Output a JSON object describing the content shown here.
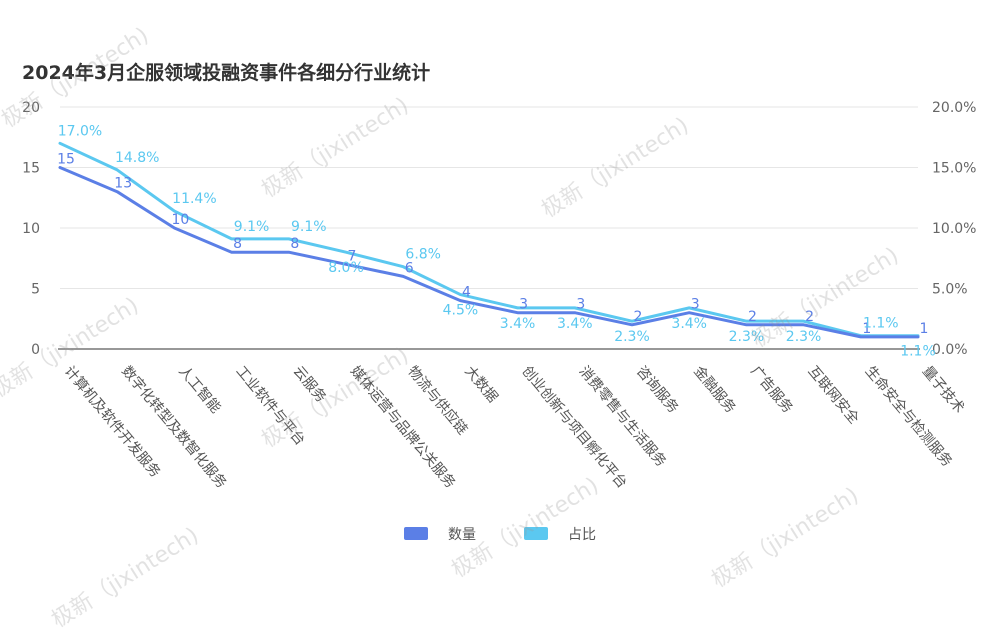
{
  "watermark_text": "极新（jixintech)",
  "chart_data": {
    "type": "line",
    "title": "2024年3月企服领域投融资事件各细分行业统计",
    "categories": [
      "计算机及软件开发服务",
      "数字化转型及数智化服务",
      "人工智能",
      "工业软件与平台",
      "云服务",
      "媒体运营与品牌公关服务",
      "物流与供应链",
      "大数据",
      "创业创新与项目孵化平台",
      "消费零售与生活服务",
      "咨询服务",
      "金融服务",
      "广告服务",
      "互联网安全",
      "生命安全与检测服务",
      "量子技术"
    ],
    "series": [
      {
        "name": "数量",
        "axis": "left",
        "color": "#5b7fe6",
        "values": [
          15,
          13,
          10,
          8,
          8,
          7,
          6,
          4,
          3,
          3,
          2,
          3,
          2,
          2,
          1,
          1
        ],
        "labels": [
          "15",
          "13",
          "10",
          "8",
          "8",
          "7",
          "6",
          "4",
          "3",
          "3",
          "2",
          "3",
          "2",
          "2",
          "1",
          "1"
        ]
      },
      {
        "name": "占比",
        "axis": "right",
        "color": "#5bc8f0",
        "values": [
          17.0,
          14.8,
          11.4,
          9.1,
          9.1,
          8.0,
          6.8,
          4.5,
          3.4,
          3.4,
          2.3,
          3.4,
          2.3,
          2.3,
          1.1,
          1.1
        ],
        "labels": [
          "17.0%",
          "14.8%",
          "11.4%",
          "9.1%",
          "9.1%",
          "8.0%",
          "6.8%",
          "4.5%",
          "3.4%",
          "3.4%",
          "2.3%",
          "3.4%",
          "2.3%",
          "2.3%",
          "1.1%",
          "1.1%"
        ]
      }
    ],
    "y_left": {
      "ylim": [
        0,
        20
      ],
      "ticks": [
        0,
        5,
        10,
        15,
        20
      ],
      "tick_labels": [
        "0",
        "5",
        "10",
        "15",
        "20"
      ]
    },
    "y_right": {
      "ylim": [
        0,
        20
      ],
      "ticks": [
        0,
        5,
        10,
        15,
        20
      ],
      "tick_labels": [
        "0.0%",
        "5.0%",
        "10.0%",
        "15.0%",
        "20.0%"
      ]
    },
    "grid": true,
    "legend_position": "bottom-center"
  }
}
